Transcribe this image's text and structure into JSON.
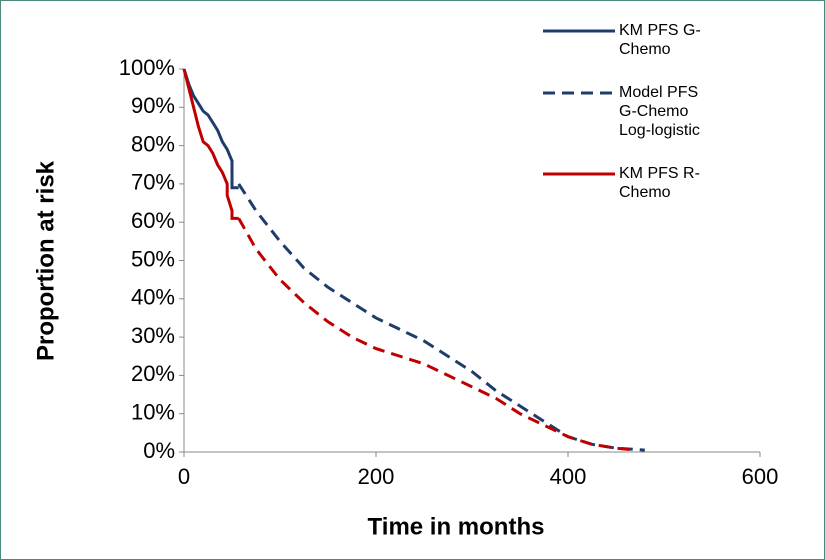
{
  "chart_data": {
    "type": "line",
    "xlabel": "Time in months",
    "ylabel": "Proportion at risk",
    "xlim": [
      0,
      600
    ],
    "xticks": [
      0,
      200,
      400,
      600
    ],
    "ylim": [
      0,
      100
    ],
    "yticks": [
      {
        "value": 0,
        "label": "0%"
      },
      {
        "value": 10,
        "label": "10%"
      },
      {
        "value": 20,
        "label": "20%"
      },
      {
        "value": 30,
        "label": "30%"
      },
      {
        "value": 40,
        "label": "40%"
      },
      {
        "value": 50,
        "label": "50%"
      },
      {
        "value": 60,
        "label": "60%"
      },
      {
        "value": 70,
        "label": "70%"
      },
      {
        "value": 80,
        "label": "80%"
      },
      {
        "value": 90,
        "label": "90%"
      },
      {
        "value": 100,
        "label": "100%"
      }
    ],
    "grid": false,
    "legend": "top-right",
    "series": [
      {
        "name": "KM PFS G-Chemo",
        "color": "#1f3d6b",
        "style": "solid",
        "x": [
          0,
          5,
          10,
          15,
          20,
          25,
          30,
          35,
          40,
          45,
          50,
          50,
          57
        ],
        "values": [
          100,
          96,
          93,
          91,
          89,
          88,
          86,
          84,
          81,
          79,
          76,
          69,
          69
        ]
      },
      {
        "name": "Model PFS G-Chemo Log-logistic",
        "color": "#1f3d6b",
        "style": "dashed",
        "x": [
          57,
          75,
          100,
          125,
          150,
          175,
          200,
          225,
          250,
          275,
          300,
          325,
          350,
          375,
          400,
          425,
          450,
          480
        ],
        "values": [
          70,
          63,
          55,
          48,
          43,
          39,
          35,
          32,
          29,
          25,
          21,
          16,
          12,
          8,
          4,
          2,
          1,
          0.5
        ]
      },
      {
        "name": "KM PFS R-Chemo",
        "color": "#c00000",
        "style": "solid",
        "x": [
          0,
          5,
          10,
          15,
          20,
          25,
          30,
          35,
          40,
          45,
          45,
          50,
          50,
          57
        ],
        "values": [
          100,
          95,
          90,
          85,
          81,
          80,
          78,
          75,
          73,
          70,
          67,
          63,
          61,
          61
        ]
      },
      {
        "color": "#c00000",
        "style": "dashed",
        "x": [
          57,
          75,
          100,
          125,
          150,
          175,
          200,
          225,
          250,
          275,
          300,
          325,
          350,
          375,
          400,
          425,
          450,
          470
        ],
        "values": [
          61,
          53,
          45,
          39,
          34,
          30,
          27,
          25,
          23,
          20,
          17,
          14,
          10,
          7,
          4,
          2,
          1,
          0.5
        ]
      }
    ]
  }
}
